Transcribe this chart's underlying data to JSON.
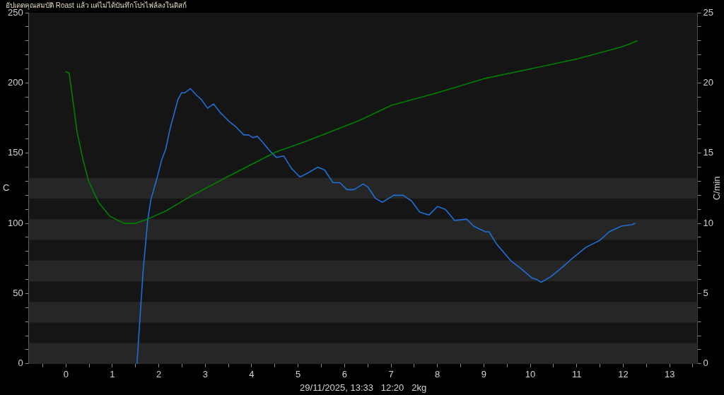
{
  "chart_data": {
    "type": "line",
    "title": "อัปเดตคุณสมบัติ Roast แล้ว แต่ไม่ได้บันทึกโปรไฟล์ลงในดิสก์",
    "xlabel": "29/11/2025, 13:33   12:20   2kg",
    "ylabel": "C",
    "y2label": "C/min",
    "xlim": [
      -0.8,
      13.6
    ],
    "xticks": [
      {
        "value": -0.5,
        "label": null
      },
      0,
      {
        "value": 0.5,
        "label": null
      },
      1,
      {
        "value": 1.5,
        "label": null
      },
      2,
      {
        "value": 2.5,
        "label": null
      },
      3,
      {
        "value": 3.5,
        "label": null
      },
      4,
      {
        "value": 4.5,
        "label": null
      },
      5,
      {
        "value": 5.5,
        "label": null
      },
      6,
      {
        "value": 6.5,
        "label": null
      },
      7,
      {
        "value": 7.5,
        "label": null
      },
      8,
      {
        "value": 8.5,
        "label": null
      },
      9,
      {
        "value": 9.5,
        "label": null
      },
      10,
      {
        "value": 10.5,
        "label": null
      },
      11,
      {
        "value": 11.5,
        "label": null
      },
      12,
      {
        "value": 12.5,
        "label": null
      },
      13,
      {
        "value": 13.5,
        "label": null
      }
    ],
    "ylim": [
      0,
      250
    ],
    "yticks": [
      0,
      {
        "value": 10,
        "label": null
      },
      {
        "value": 20,
        "label": null
      },
      {
        "value": 30,
        "label": null
      },
      {
        "value": 40,
        "label": null
      },
      50,
      {
        "value": 60,
        "label": null
      },
      {
        "value": 70,
        "label": null
      },
      {
        "value": 80,
        "label": null
      },
      {
        "value": 90,
        "label": null
      },
      100,
      {
        "value": 110,
        "label": null
      },
      {
        "value": 120,
        "label": null
      },
      {
        "value": 130,
        "label": null
      },
      {
        "value": 140,
        "label": null
      },
      150,
      {
        "value": 160,
        "label": null
      },
      {
        "value": 170,
        "label": null
      },
      {
        "value": 180,
        "label": null
      },
      {
        "value": 190,
        "label": null
      },
      200,
      {
        "value": 210,
        "label": null
      },
      {
        "value": 220,
        "label": null
      },
      {
        "value": 230,
        "label": null
      },
      {
        "value": 240,
        "label": null
      },
      250
    ],
    "y2lim": [
      0,
      25
    ],
    "y2ticks": [
      0,
      {
        "value": 1,
        "label": null
      },
      {
        "value": 2,
        "label": null
      },
      {
        "value": 3,
        "label": null
      },
      {
        "value": 4,
        "label": null
      },
      5,
      {
        "value": 6,
        "label": null
      },
      {
        "value": 7,
        "label": null
      },
      {
        "value": 8,
        "label": null
      },
      {
        "value": 9,
        "label": null
      },
      10,
      {
        "value": 11,
        "label": null
      },
      {
        "value": 12,
        "label": null
      },
      {
        "value": 13,
        "label": null
      },
      {
        "value": 14,
        "label": null
      },
      15,
      {
        "value": 16,
        "label": null
      },
      {
        "value": 17,
        "label": null
      },
      {
        "value": 18,
        "label": null
      },
      {
        "value": 19,
        "label": null
      },
      20,
      {
        "value": 21,
        "label": null
      },
      {
        "value": 22,
        "label": null
      },
      {
        "value": 23,
        "label": null
      },
      {
        "value": 24,
        "label": null
      },
      25
    ],
    "bands": [
      {
        "axis": "y",
        "from": 0,
        "to": 14.7,
        "color": "#262626"
      },
      {
        "axis": "y",
        "from": 29.4,
        "to": 44.1,
        "color": "#262626"
      },
      {
        "axis": "y",
        "from": 58.8,
        "to": 73.5,
        "color": "#262626"
      },
      {
        "axis": "y",
        "from": 88.2,
        "to": 102.9,
        "color": "#262626"
      },
      {
        "axis": "y",
        "from": 117.6,
        "to": 132.4,
        "color": "#262626"
      }
    ],
    "series": [
      {
        "color": "#008000",
        "x": [
          0,
          0.07,
          0.14,
          0.24,
          0.37,
          0.49,
          0.7,
          0.95,
          1.25,
          1.5,
          1.76,
          2.16,
          2.67,
          3.47,
          4.53,
          5.14,
          6.3,
          7,
          8,
          9,
          10,
          11,
          12,
          12.3
        ],
        "values": [
          208,
          207,
          190,
          165,
          145,
          130,
          115,
          105,
          100,
          100,
          103,
          109,
          119,
          133,
          151,
          158,
          173,
          184,
          193,
          203,
          210,
          217,
          226,
          230
        ]
      },
      {
        "color": "#1e6fd6",
        "axis": "y2",
        "x": [
          1.53,
          1.66,
          1.76,
          1.83,
          1.96,
          2.06,
          2.15,
          2.24,
          2.41,
          2.49,
          2.56,
          2.68,
          2.82,
          2.92,
          3.05,
          3.18,
          3.32,
          3.5,
          3.65,
          3.83,
          3.93,
          4.03,
          4.12,
          4.23,
          4.38,
          4.53,
          4.69,
          4.86,
          5.04,
          5.22,
          5.42,
          5.57,
          5.75,
          5.9,
          6.05,
          6.2,
          6.4,
          6.5,
          6.66,
          6.81,
          7.06,
          7.26,
          7.44,
          7.62,
          7.82,
          8,
          8.17,
          8.37,
          8.63,
          8.78,
          9.03,
          9.11,
          9.28,
          9.59,
          9.79,
          10.04,
          10.14,
          10.23,
          10.44,
          10.7,
          10.9,
          11.2,
          11.5,
          11.7,
          11.96,
          12.19,
          12.25
        ],
        "values": [
          0,
          6.5,
          10.2,
          11.7,
          13.2,
          14.5,
          15.3,
          16.7,
          18.8,
          19.3,
          19.3,
          19.6,
          19.1,
          18.8,
          18.2,
          18.5,
          17.9,
          17.3,
          16.9,
          16.3,
          16.3,
          16.1,
          16.2,
          15.8,
          15.2,
          14.7,
          14.8,
          13.9,
          13.3,
          13.6,
          14,
          13.8,
          12.9,
          12.9,
          12.4,
          12.4,
          12.8,
          12.6,
          11.8,
          11.5,
          12,
          12,
          11.6,
          10.8,
          10.6,
          11.2,
          11,
          10.2,
          10.3,
          9.8,
          9.4,
          9.4,
          8.5,
          7.3,
          6.8,
          6.1,
          6,
          5.8,
          6.2,
          6.9,
          7.5,
          8.3,
          8.8,
          9.4,
          9.8,
          9.9,
          10
        ]
      }
    ]
  }
}
